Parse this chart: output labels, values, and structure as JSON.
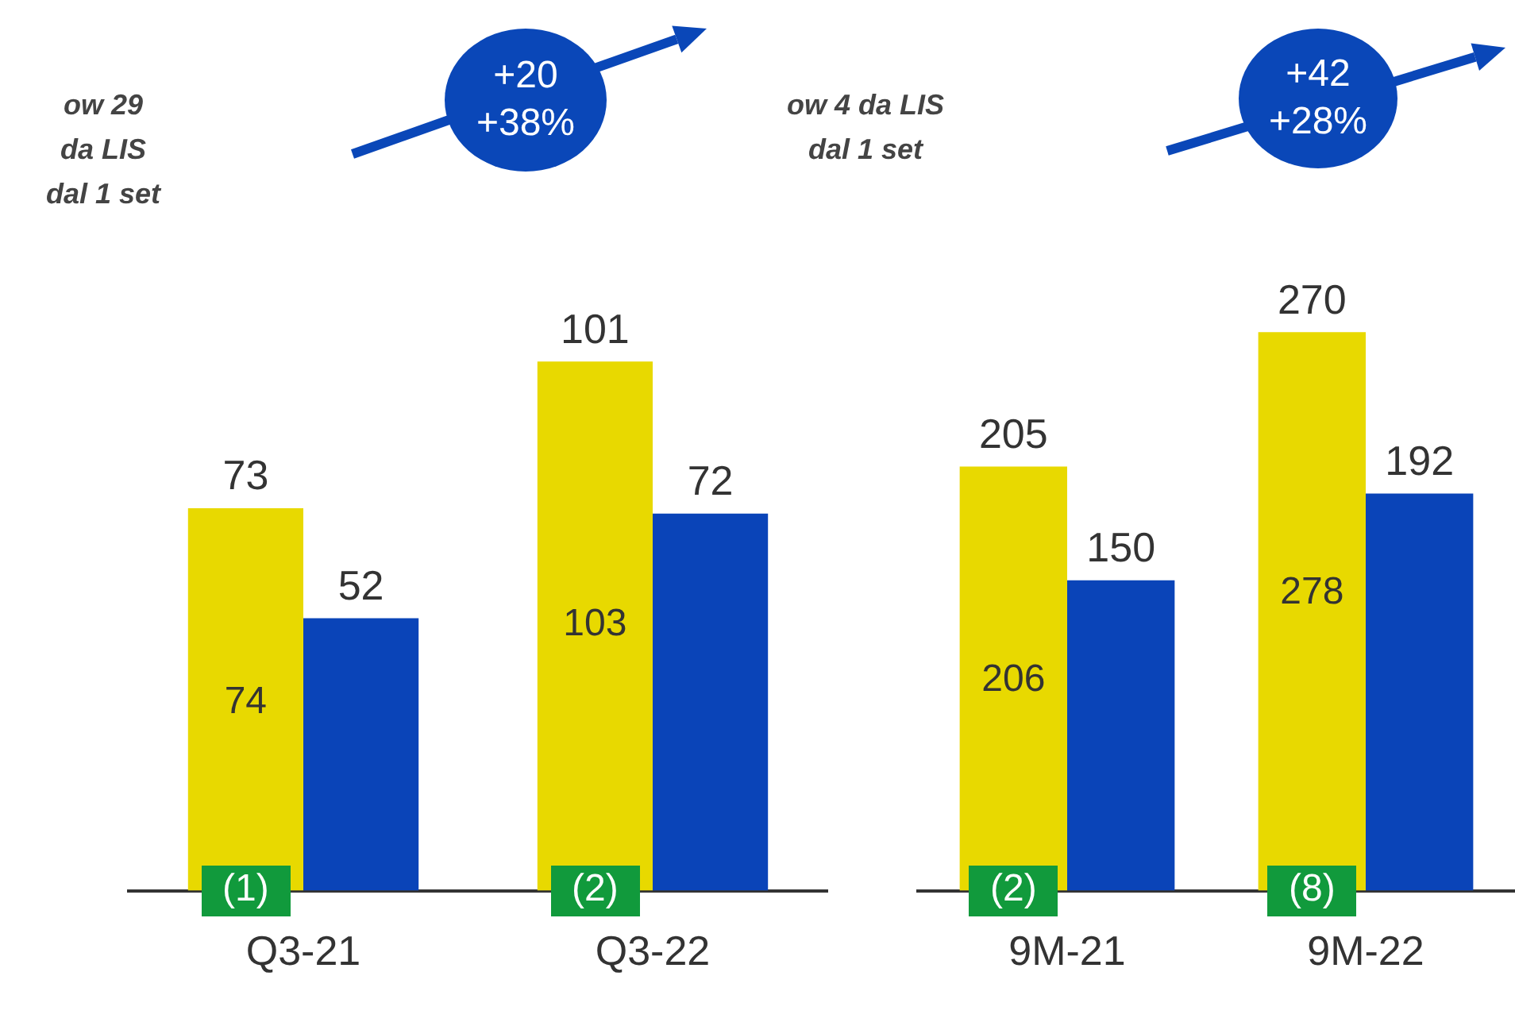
{
  "chart_data": [
    {
      "type": "bar",
      "categories": [
        "Q3-21",
        "Q3-22"
      ],
      "tick_labels": "x",
      "grid": false,
      "legend": false,
      "data_labels": true,
      "series": [
        {
          "color": "#e8d900",
          "values": [
            73,
            101
          ]
        },
        {
          "color": "#0a44b8",
          "values": [
            52,
            72
          ]
        }
      ],
      "annotations": [
        "+20\n+38%",
        "ow 29\nda LIS\ndal 1 set",
        "ow 4 da LIS\ndal 1 set",
        {
          "text": "74",
          "x": "Q3-21",
          "y": 36
        },
        {
          "text": "103",
          "x": "Q3-22",
          "y": 51
        },
        {
          "text": "(1)",
          "x": "Q3-21",
          "y": 0
        },
        {
          "text": "(2)",
          "x": "Q3-22",
          "y": 0
        }
      ]
    },
    {
      "type": "bar",
      "categories": [
        "9M-21",
        "9M-22"
      ],
      "tick_labels": "x",
      "grid": false,
      "legend": false,
      "data_labels": true,
      "series": [
        {
          "color": "#e8d900",
          "values": [
            205,
            270
          ]
        },
        {
          "color": "#0a44b8",
          "values": [
            150,
            192
          ]
        }
      ],
      "annotations": [
        "+42\n+28%",
        {
          "text": "206",
          "x": "9M-21",
          "y": 102
        },
        {
          "text": "278",
          "x": "9M-22",
          "y": 144
        },
        {
          "text": "(2)",
          "x": "9M-21",
          "y": 0
        },
        {
          "text": "(8)",
          "x": "9M-22",
          "y": 0
        }
      ]
    }
  ]
}
